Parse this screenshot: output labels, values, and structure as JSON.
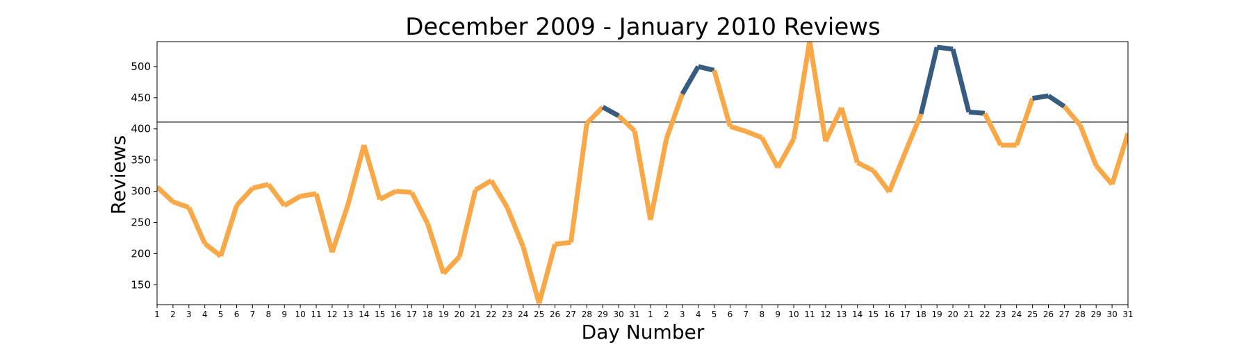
{
  "chart_data": {
    "type": "line",
    "title": "December 2009 - January 2010 Reviews",
    "xlabel": "Day Number",
    "ylabel": "Reviews",
    "ylim": [
      118,
      540
    ],
    "yticks": [
      150,
      200,
      250,
      300,
      350,
      400,
      450,
      500
    ],
    "x_tick_labels": [
      "1",
      "2",
      "3",
      "4",
      "5",
      "6",
      "7",
      "8",
      "9",
      "10",
      "11",
      "12",
      "13",
      "14",
      "15",
      "16",
      "17",
      "18",
      "19",
      "20",
      "21",
      "22",
      "23",
      "24",
      "25",
      "26",
      "27",
      "28",
      "29",
      "30",
      "31",
      "1",
      "2",
      "3",
      "4",
      "5",
      "6",
      "7",
      "8",
      "9",
      "10",
      "11",
      "12",
      "13",
      "14",
      "15",
      "16",
      "17",
      "18",
      "19",
      "20",
      "21",
      "22",
      "23",
      "24",
      "25",
      "26",
      "27",
      "28",
      "29",
      "30",
      "31"
    ],
    "values": [
      307,
      283,
      274,
      216,
      196,
      277,
      305,
      311,
      277,
      292,
      296,
      202,
      279,
      374,
      287,
      300,
      298,
      248,
      168,
      195,
      302,
      317,
      274,
      211,
      120,
      215,
      218,
      409,
      435,
      421,
      397,
      254,
      384,
      456,
      500,
      494,
      404,
      396,
      386,
      338,
      384,
      541,
      380,
      434,
      346,
      333,
      299,
      362,
      424,
      531,
      528,
      427,
      425,
      374,
      374,
      449,
      453,
      436,
      406,
      341,
      311,
      393
    ],
    "threshold": 411,
    "colors": {
      "below": "#f9a847",
      "above": "#375c7f",
      "reference_line": "#444444"
    },
    "grid": false,
    "legend": "none"
  }
}
